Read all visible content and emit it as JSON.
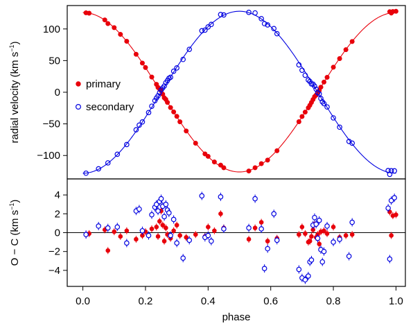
{
  "chart_data": {
    "type": "scatter",
    "xlabel": "phase",
    "panels": [
      {
        "name": "top",
        "ylabel": "radial velocity (km s",
        "ylabel_sup": "−1",
        "ylabel_end": ")",
        "xlim": [
          -0.05,
          1.03
        ],
        "ylim": [
          -137,
          137
        ],
        "yticks": [
          -100,
          -50,
          0,
          50,
          100
        ],
        "legend": {
          "position": "left-middle"
        },
        "model_curves": [
          {
            "series": "primary",
            "K": 126,
            "gamma": 0,
            "phase_of_max": 0.0,
            "color": "#e8000b"
          },
          {
            "series": "secondary",
            "K": 128,
            "gamma": 0,
            "phase_of_max": 0.5,
            "color": "#0000e0"
          }
        ]
      },
      {
        "name": "bottom",
        "ylabel": "O − C (km s",
        "ylabel_sup": "−1",
        "ylabel_end": ")",
        "xlim": [
          -0.05,
          1.03
        ],
        "ylim": [
          -5.7,
          5.7
        ],
        "yticks": [
          -4,
          -2,
          0,
          2,
          4
        ],
        "zero_line": true
      }
    ],
    "xticks": [
      0.0,
      0.2,
      0.4,
      0.6,
      0.8,
      1.0
    ],
    "xtick_labels": [
      "0.0",
      "0.2",
      "0.4",
      "0.6",
      "0.8",
      "1.0"
    ],
    "series": [
      {
        "name": "primary",
        "marker": "filled-circle",
        "color": "#e8000b"
      },
      {
        "name": "secondary",
        "marker": "open-circle",
        "color": "#0000e0"
      }
    ],
    "observations": {
      "primary_phase": [
        0.01,
        0.02,
        0.07,
        0.08,
        0.1,
        0.12,
        0.14,
        0.17,
        0.19,
        0.2,
        0.22,
        0.235,
        0.24,
        0.245,
        0.25,
        0.255,
        0.26,
        0.265,
        0.27,
        0.28,
        0.29,
        0.3,
        0.31,
        0.33,
        0.36,
        0.39,
        0.4,
        0.42,
        0.44,
        0.45,
        0.53,
        0.55,
        0.57,
        0.59,
        0.62,
        0.69,
        0.7,
        0.71,
        0.72,
        0.725,
        0.73,
        0.735,
        0.74,
        0.745,
        0.75,
        0.755,
        0.76,
        0.77,
        0.78,
        0.8,
        0.82,
        0.84,
        0.86,
        0.98,
        0.985,
        0.99,
        1.0
      ],
      "primary_residual": [
        -0.2,
        -0.1,
        0.3,
        -1.9,
        0.1,
        -0.4,
        0.2,
        -0.7,
        -0.3,
        0.1,
        0.4,
        0.6,
        -0.4,
        1.2,
        2.3,
        0.8,
        -0.9,
        0.5,
        -0.2,
        -0.6,
        0.2,
        0.8,
        -0.3,
        -0.5,
        -0.2,
        -0.4,
        0.6,
        0.2,
        2.0,
        0.5,
        -0.7,
        0.5,
        1.1,
        -0.9,
        -0.6,
        -0.2,
        0.6,
        -0.1,
        -1.0,
        -0.9,
        -0.4,
        0.3,
        0.9,
        -0.5,
        -0.2,
        -1.2,
        0.1,
        0.2,
        -0.1,
        0.6,
        -0.5,
        -0.3,
        -0.2,
        2.2,
        -0.3,
        1.8,
        1.9
      ],
      "secondary_phase": [
        0.01,
        0.05,
        0.08,
        0.11,
        0.14,
        0.17,
        0.18,
        0.19,
        0.21,
        0.22,
        0.23,
        0.235,
        0.24,
        0.245,
        0.25,
        0.255,
        0.26,
        0.265,
        0.27,
        0.275,
        0.28,
        0.29,
        0.3,
        0.32,
        0.34,
        0.38,
        0.39,
        0.4,
        0.41,
        0.44,
        0.45,
        0.53,
        0.55,
        0.57,
        0.58,
        0.59,
        0.61,
        0.62,
        0.69,
        0.7,
        0.71,
        0.72,
        0.725,
        0.73,
        0.735,
        0.74,
        0.745,
        0.75,
        0.755,
        0.76,
        0.765,
        0.77,
        0.78,
        0.8,
        0.82,
        0.85,
        0.86,
        0.975,
        0.98,
        0.985,
        0.995
      ],
      "secondary_residual": [
        -0.2,
        0.7,
        0.5,
        0.6,
        -1.1,
        2.3,
        2.5,
        0.2,
        -0.3,
        1.9,
        2.7,
        3.0,
        2.3,
        3.3,
        3.6,
        2.8,
        1.7,
        3.0,
        2.4,
        2.1,
        -0.3,
        1.4,
        -1.1,
        -2.7,
        -0.8,
        3.9,
        -0.5,
        -0.3,
        -0.9,
        3.8,
        0.4,
        0.5,
        3.6,
        0.4,
        -3.8,
        -1.7,
        2.0,
        -0.8,
        -3.9,
        -4.8,
        -5.0,
        -4.6,
        -3.1,
        -2.9,
        0.8,
        1.6,
        0.9,
        -0.6,
        1.3,
        -1.8,
        -3.1,
        -2.0,
        0.7,
        -1.0,
        -0.7,
        -2.5,
        1.1,
        2.6,
        -2.8,
        3.4,
        3.7
      ]
    }
  }
}
